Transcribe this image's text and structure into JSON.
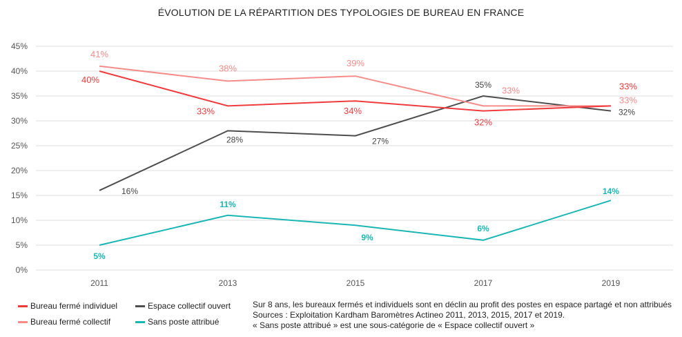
{
  "chart_data": {
    "type": "line",
    "title": "ÉVOLUTION DE LA RÉPARTITION DES TYPOLOGIES DE BUREAU EN FRANCE",
    "categories": [
      "2011",
      "2013",
      "2015",
      "2017",
      "2019"
    ],
    "ylim": [
      0,
      45
    ],
    "yticks": [
      "0%",
      "5%",
      "10%",
      "15%",
      "20%",
      "25%",
      "30%",
      "35%",
      "40%",
      "45%"
    ],
    "grid": true,
    "legend_placement": "bottom-left",
    "series": [
      {
        "name": "Bureau fermé individuel",
        "color": "#ef3b3d",
        "values": [
          40,
          33,
          34,
          32,
          33
        ],
        "labels": [
          "40%",
          "33%",
          "34%",
          "32%",
          "33%"
        ]
      },
      {
        "name": "Bureau fermé collectif",
        "color": "#f58c8a",
        "values": [
          41,
          38,
          39,
          33,
          33
        ],
        "labels": [
          "41%",
          "38%",
          "39%",
          "33%",
          "33%"
        ]
      },
      {
        "name": "Espace collectif ouvert",
        "color": "#4d4d4f",
        "values": [
          16,
          28,
          27,
          35,
          32
        ],
        "labels": [
          "16%",
          "28%",
          "27%",
          "35%",
          "32%"
        ]
      },
      {
        "name": "Sans poste attribué",
        "color": "#19b6b4",
        "values": [
          5,
          11,
          9,
          6,
          14
        ],
        "labels": [
          "5%",
          "11%",
          "9%",
          "6%",
          "14%"
        ]
      }
    ]
  },
  "notes": [
    "Sur 8 ans, les bureaux fermés et individuels sont en déclin au profit des postes en espace partagé et non attribués",
    "Sources : Exploitation Kardham Baromètres Actineo 2011, 2013, 2015, 2017 et 2019.",
    "« Sans poste attribué » est une sous-catégorie de « Espace collectif ouvert »"
  ]
}
